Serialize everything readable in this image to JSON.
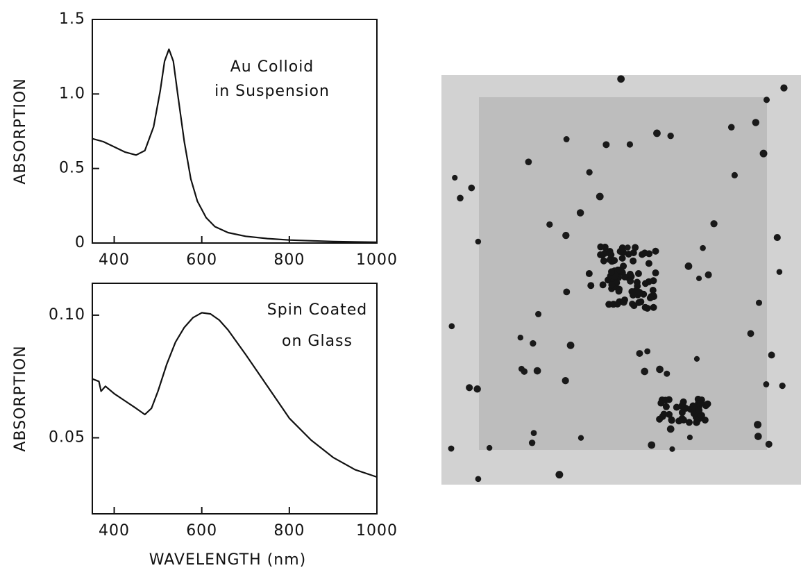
{
  "chart_data": [
    {
      "type": "line",
      "y_label": "ABSORPTION",
      "annotations": [
        "Au Colloid",
        "in Suspension"
      ],
      "x": [
        350,
        375,
        400,
        425,
        450,
        470,
        490,
        505,
        515,
        525,
        535,
        545,
        560,
        575,
        590,
        610,
        630,
        660,
        700,
        750,
        800,
        900,
        1000
      ],
      "values": [
        0.7,
        0.68,
        0.645,
        0.61,
        0.59,
        0.62,
        0.78,
        1.02,
        1.22,
        1.3,
        1.22,
        1.0,
        0.68,
        0.43,
        0.28,
        0.17,
        0.11,
        0.07,
        0.045,
        0.03,
        0.02,
        0.01,
        0.005
      ],
      "color": "#111111",
      "xlim": [
        350,
        1000
      ],
      "xticks": [
        400,
        600,
        800,
        1000
      ],
      "ylim": [
        0,
        1.5
      ],
      "yticks": [
        0,
        0.5,
        {
          "value": 1,
          "label": "1.0"
        },
        1.5
      ]
    },
    {
      "type": "line",
      "y_label": "ABSORPTION",
      "x_label": "WAVELENGTH (nm)",
      "annotations": [
        "Spin Coated",
        "on Glass"
      ],
      "x": [
        350,
        365,
        370,
        380,
        400,
        425,
        450,
        470,
        485,
        500,
        520,
        540,
        560,
        580,
        600,
        620,
        640,
        660,
        700,
        750,
        800,
        850,
        900,
        950,
        1000
      ],
      "values": [
        0.074,
        0.073,
        0.069,
        0.071,
        0.068,
        0.065,
        0.062,
        0.0595,
        0.062,
        0.069,
        0.08,
        0.089,
        0.095,
        0.099,
        0.101,
        0.1005,
        0.098,
        0.094,
        0.084,
        0.071,
        0.058,
        0.049,
        0.042,
        0.037,
        0.034
      ],
      "color": "#111111",
      "xlim": [
        350,
        1000
      ],
      "xticks": [
        400,
        600,
        800,
        1000
      ],
      "ylim": [
        0.019,
        0.113
      ],
      "yticks": [
        0.05,
        {
          "value": 0.1,
          "label": "0.10"
        }
      ]
    }
  ]
}
